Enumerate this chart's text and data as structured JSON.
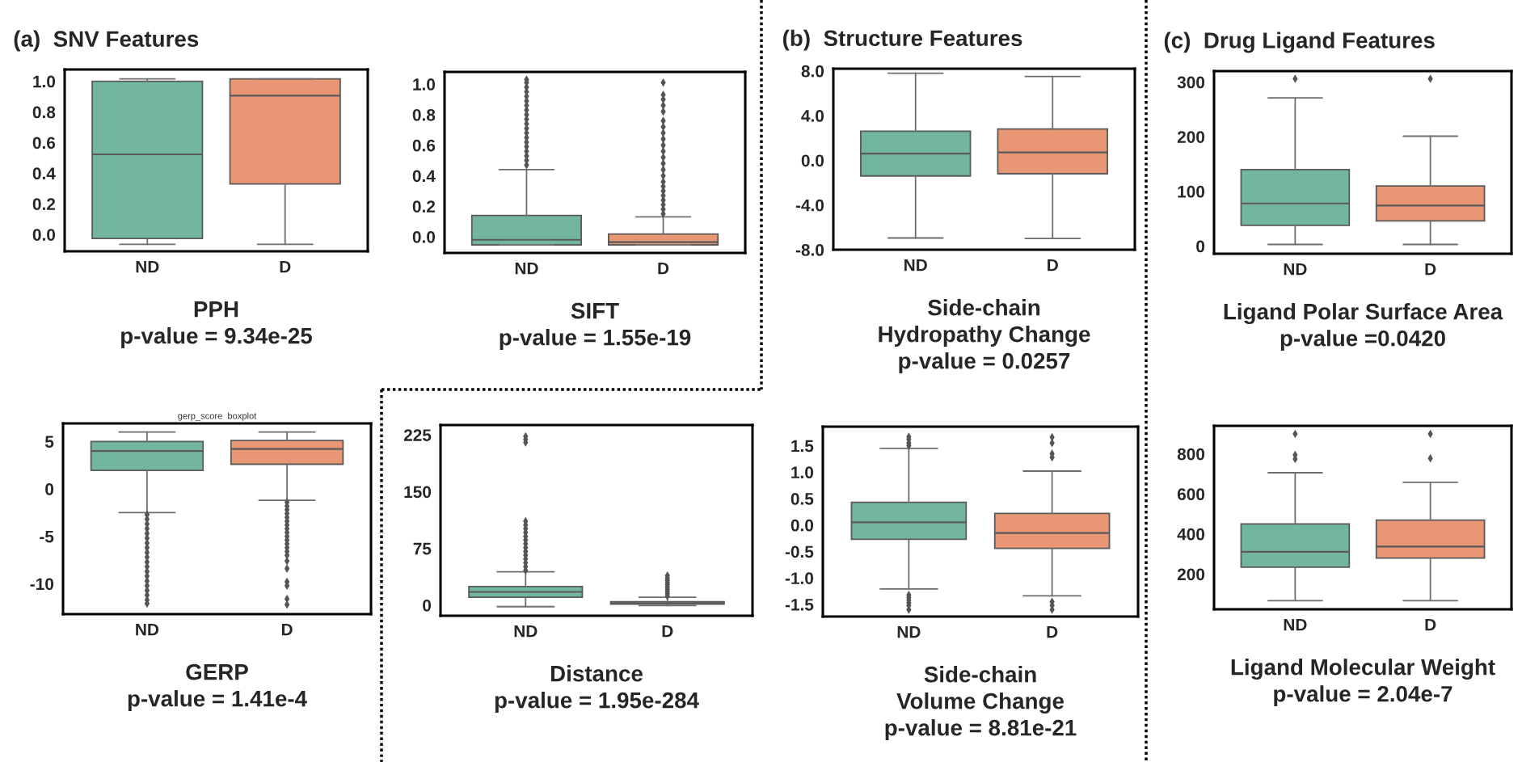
{
  "chart_data": [
    {
      "type": "box",
      "categories": [
        "ND",
        "D"
      ],
      "colors": [
        "#72b6a1",
        "#e99675"
      ],
      "xlabel": "PPH\np-value = 9.34e-25",
      "annotations": [
        "(a)  SNV Features"
      ],
      "ylim": [
        -0.11,
        1.077
      ],
      "yticks": [
        {
          "value": 0,
          "label": "0.0"
        },
        0.2,
        0.4,
        0.6,
        0.8,
        {
          "value": 1,
          "label": "1.0"
        }
      ],
      "grid": false,
      "boxes": [
        {
          "low": -0.065,
          "q1": -0.026,
          "median": 0.523,
          "q3": 1.0,
          "high": 1.016
        },
        {
          "low": -0.065,
          "q1": 0.33,
          "median": 0.906,
          "q3": 1.016,
          "high": 1.016
        }
      ]
    },
    {
      "type": "box",
      "categories": [
        "ND",
        "D"
      ],
      "colors": [
        "#72b6a1",
        "#e99675"
      ],
      "xlabel": "SIFT\np-value = 1.55e-19",
      "ylim": [
        -0.106,
        1.08
      ],
      "yticks": [
        {
          "value": 0,
          "label": "0.0"
        },
        0.2,
        0.4,
        0.6,
        0.8,
        {
          "value": 1,
          "label": "1.0"
        }
      ],
      "grid": false,
      "boxes": [
        {
          "low": -0.053,
          "q1": -0.053,
          "median": -0.02,
          "q3": 0.14,
          "high": 0.44,
          "outliers": [
            0.47,
            0.5,
            0.53,
            0.56,
            0.59,
            0.62,
            0.65,
            0.68,
            0.71,
            0.74,
            0.77,
            0.8,
            0.83,
            0.86,
            0.89,
            0.92,
            0.95,
            0.98,
            1.01,
            1.03
          ]
        },
        {
          "low": -0.053,
          "q1": -0.053,
          "median": -0.035,
          "q3": 0.018,
          "high": 0.13,
          "outliers": [
            0.15,
            0.18,
            0.21,
            0.24,
            0.27,
            0.3,
            0.33,
            0.36,
            0.4,
            0.44,
            0.48,
            0.52,
            0.56,
            0.6,
            0.64,
            0.68,
            0.72,
            0.76,
            0.82,
            0.86,
            0.9,
            0.93,
            1.01
          ]
        }
      ]
    },
    {
      "type": "box",
      "categories": [
        "ND",
        "D"
      ],
      "colors": [
        "#72b6a1",
        "#e99675"
      ],
      "xlabel": "Side-chain\nHydropathy Change\np-value = 0.0257",
      "annotations": [
        "(b)  Structure Features"
      ],
      "ylim": [
        -8.0,
        8.2
      ],
      "yticks": [
        {
          "value": -8,
          "label": "-8.0"
        },
        {
          "value": -4,
          "label": "-4.0"
        },
        {
          "value": 0,
          "label": "0.0"
        },
        {
          "value": 4,
          "label": "4.0"
        },
        {
          "value": 8,
          "label": "8.0"
        }
      ],
      "grid": false,
      "boxes": [
        {
          "low": -6.95,
          "q1": -1.4,
          "median": 0.6,
          "q3": 2.6,
          "high": 7.8
        },
        {
          "low": -7.0,
          "q1": -1.2,
          "median": 0.7,
          "q3": 2.8,
          "high": 7.5
        }
      ]
    },
    {
      "type": "box",
      "categories": [
        "ND",
        "D"
      ],
      "colors": [
        "#72b6a1",
        "#e99675"
      ],
      "xlabel": "Ligand Polar Surface Area\np-value =0.0420",
      "annotations": [
        "(c)  Drug Ligand Features"
      ],
      "ylim": [
        -14,
        320
      ],
      "yticks": [
        0,
        100,
        200,
        300
      ],
      "grid": false,
      "boxes": [
        {
          "low": 3,
          "q1": 38,
          "median": 78,
          "q3": 140,
          "high": 271,
          "outliers": [
            306
          ]
        },
        {
          "low": 3,
          "q1": 46,
          "median": 74,
          "q3": 110,
          "high": 201,
          "outliers": [
            306
          ]
        }
      ]
    },
    {
      "type": "box",
      "categories": [
        "ND",
        "D"
      ],
      "colors": [
        "#72b6a1",
        "#e99675"
      ],
      "title": "gerp_score  boxplot",
      "xlabel": "GERP\np-value = 1.41e-4",
      "ylim": [
        -13.2,
        6.9
      ],
      "yticks": [
        -10,
        -5,
        0,
        5
      ],
      "grid": false,
      "boxes": [
        {
          "low": -2.5,
          "q1": 1.95,
          "median": 4.0,
          "q3": 5.0,
          "high": 6.0,
          "outliers": [
            -2.7,
            -3.2,
            -3.7,
            -4.2,
            -4.7,
            -5.2,
            -5.7,
            -6.2,
            -6.7,
            -7.2,
            -7.7,
            -8.2,
            -8.7,
            -9.2,
            -9.7,
            -10.2,
            -10.7,
            -11.2,
            -11.7,
            -12.1
          ]
        },
        {
          "low": -1.2,
          "q1": 2.6,
          "median": 4.2,
          "q3": 5.1,
          "high": 6.0,
          "outliers": [
            -1.4,
            -1.8,
            -2.2,
            -2.6,
            -3.0,
            -3.4,
            -3.8,
            -4.2,
            -4.6,
            -5.0,
            -5.4,
            -5.8,
            -6.2,
            -6.6,
            -7.0,
            -7.6,
            -8.4,
            -9.8,
            -10.2,
            -11.6,
            -12.2
          ]
        }
      ]
    },
    {
      "type": "box",
      "categories": [
        "ND",
        "D"
      ],
      "colors": [
        "#72b6a1",
        "#e99675"
      ],
      "xlabel": "Distance\np-value = 1.95e-284",
      "ylim": [
        -14,
        238
      ],
      "yticks": [
        0,
        75,
        150,
        225
      ],
      "grid": false,
      "boxes": [
        {
          "low": -2,
          "q1": 10.4,
          "median": 17.5,
          "q3": 24.6,
          "high": 44,
          "outliers": [
            46,
            51,
            56,
            61,
            66,
            71,
            76,
            81,
            86,
            91,
            96,
            101,
            106,
            111,
            215,
            219,
            223
          ]
        },
        {
          "low": -0.6,
          "q1": 1.3,
          "median": 2.6,
          "q3": 4.5,
          "high": 10.4,
          "outliers": [
            12,
            15,
            18,
            21,
            24,
            27,
            30,
            33,
            36,
            39
          ]
        }
      ]
    },
    {
      "type": "box",
      "categories": [
        "ND",
        "D"
      ],
      "colors": [
        "#72b6a1",
        "#e99675"
      ],
      "xlabel": "Side-chain\nVolume Change\np-value = 8.81e-21",
      "ylim": [
        -1.73,
        1.86
      ],
      "yticks": [
        -1.5,
        {
          "value": -1,
          "label": "-1.0"
        },
        -0.5,
        {
          "value": 0,
          "label": "0.0"
        },
        0.5,
        {
          "value": 1,
          "label": "1.0"
        },
        1.5
      ],
      "grid": false,
      "boxes": [
        {
          "low": -1.21,
          "q1": -0.27,
          "median": 0.05,
          "q3": 0.43,
          "high": 1.45,
          "outliers": [
            1.5,
            1.55,
            1.62,
            1.67,
            -1.32,
            -1.37,
            -1.42,
            -1.47,
            -1.52,
            -1.6
          ]
        },
        {
          "low": -1.34,
          "q1": -0.44,
          "median": -0.15,
          "q3": 0.22,
          "high": 1.02,
          "outliers": [
            1.28,
            1.35,
            1.55,
            1.66,
            -1.45,
            -1.52,
            -1.6
          ]
        }
      ]
    },
    {
      "type": "box",
      "categories": [
        "ND",
        "D"
      ],
      "colors": [
        "#72b6a1",
        "#e99675"
      ],
      "xlabel": "Ligand Molecular Weight\np-value = 2.04e-7",
      "ylim": [
        24,
        940
      ],
      "yticks": [
        200,
        400,
        600,
        800
      ],
      "grid": false,
      "boxes": [
        {
          "low": 67,
          "q1": 234,
          "median": 311,
          "q3": 450,
          "high": 706,
          "outliers": [
            900,
            795,
            775
          ]
        },
        {
          "low": 67,
          "q1": 280,
          "median": 337,
          "q3": 469,
          "high": 658,
          "outliers": [
            900,
            778
          ]
        }
      ]
    }
  ]
}
